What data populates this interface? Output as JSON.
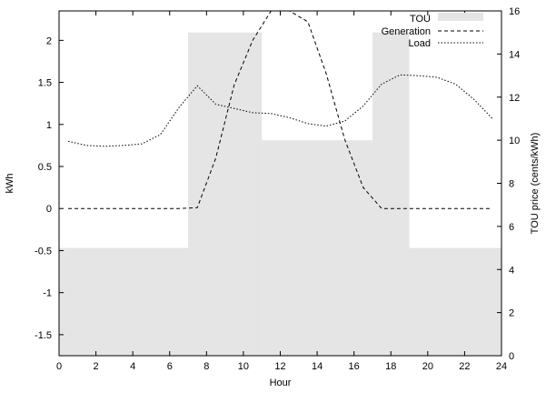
{
  "chart_data": {
    "type": "line",
    "xlabel": "Hour",
    "ylabel_left": "kWh",
    "ylabel_right": "TOU price (cents/kWh)",
    "xlim": [
      0,
      24
    ],
    "ylim_left": [
      -1.75,
      2.35
    ],
    "ylim_right": [
      0,
      16
    ],
    "x_ticks": [
      "0",
      "2",
      "4",
      "6",
      "8",
      "10",
      "12",
      "14",
      "16",
      "18",
      "20",
      "22",
      "24"
    ],
    "y_left_ticks": [
      "-1.5",
      "-1",
      "-0.5",
      "0",
      "0.5",
      "1",
      "1.5",
      "2"
    ],
    "y_right_ticks": [
      "0",
      "2",
      "4",
      "6",
      "8",
      "10",
      "12",
      "14",
      "16"
    ],
    "legend_position": "top-right",
    "legend": [
      {
        "label": "TOU",
        "style": "filled-box"
      },
      {
        "label": "Generation",
        "style": "dashed"
      },
      {
        "label": "Load",
        "style": "dotted"
      }
    ],
    "tou": {
      "name": "TOU",
      "axis": "right",
      "color": "#e5e5e5",
      "segments": [
        {
          "start": 0,
          "end": 7,
          "price": 5
        },
        {
          "start": 7,
          "end": 11,
          "price": 15
        },
        {
          "start": 11,
          "end": 17,
          "price": 10
        },
        {
          "start": 17,
          "end": 19,
          "price": 15
        },
        {
          "start": 19,
          "end": 24,
          "price": 5
        }
      ]
    },
    "series": [
      {
        "name": "Generation",
        "axis": "left",
        "dash": "dashed",
        "x": [
          0.5,
          1.5,
          2.5,
          3.5,
          4.5,
          5.5,
          6.5,
          7.5,
          8.5,
          9.5,
          10.5,
          11.5,
          12.5,
          13.5,
          14.5,
          15.5,
          16.5,
          17.5,
          18.5,
          19.5,
          20.5,
          21.5,
          22.5,
          23.5
        ],
        "y": [
          0,
          0,
          0,
          0,
          0,
          0,
          0,
          0.01,
          0.6,
          1.47,
          2.0,
          2.35,
          2.35,
          2.22,
          1.6,
          0.82,
          0.25,
          0,
          0,
          0,
          0,
          0,
          0,
          0
        ]
      },
      {
        "name": "Load",
        "axis": "left",
        "dash": "dotted",
        "x": [
          0.5,
          1.5,
          2.5,
          3.5,
          4.5,
          5.5,
          6.5,
          7.5,
          8.5,
          9.5,
          10.5,
          11.5,
          12.5,
          13.5,
          14.5,
          15.5,
          16.5,
          17.5,
          18.5,
          19.5,
          20.5,
          21.5,
          22.5,
          23.5
        ],
        "y": [
          0.8,
          0.75,
          0.74,
          0.75,
          0.77,
          0.88,
          1.2,
          1.46,
          1.24,
          1.19,
          1.14,
          1.13,
          1.08,
          1.01,
          0.98,
          1.04,
          1.22,
          1.48,
          1.59,
          1.58,
          1.56,
          1.48,
          1.3,
          1.07
        ]
      }
    ]
  }
}
